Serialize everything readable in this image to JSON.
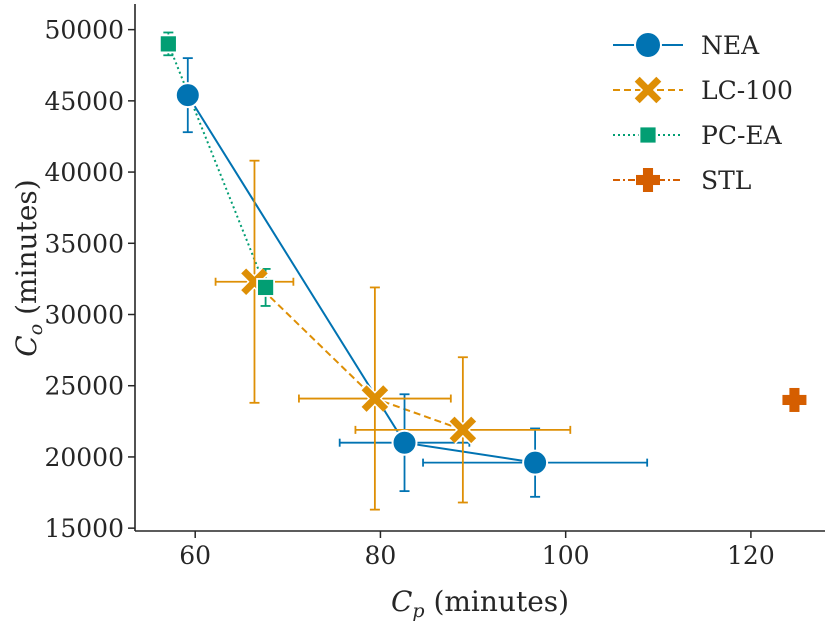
{
  "chart_data": {
    "type": "scatter",
    "xlabel_var": "C",
    "xlabel_sub": "p",
    "xlabel_unit": " (minutes)",
    "ylabel_var": "C",
    "ylabel_sub": "o",
    "ylabel_unit": " (minutes)",
    "xlim": [
      53.5,
      128
    ],
    "ylim": [
      14800,
      51800
    ],
    "xticks": [
      60,
      80,
      100,
      120
    ],
    "yticks": [
      15000,
      20000,
      25000,
      30000,
      35000,
      40000,
      45000,
      50000
    ],
    "grid": false,
    "legend_position": "top-right",
    "series": [
      {
        "name": "NEA",
        "color": "#0173b2",
        "marker": "circle",
        "line": "solid",
        "points": [
          {
            "x": 59.2,
            "y": 45400,
            "xerr": 0,
            "yerr": 2600
          },
          {
            "x": 82.6,
            "y": 21000,
            "xerr": 7.0,
            "yerr": 3400
          },
          {
            "x": 96.7,
            "y": 19600,
            "xerr": 12.1,
            "yerr": 2400
          }
        ]
      },
      {
        "name": "LC-100",
        "color": "#de8f05",
        "marker": "x",
        "line": "dashed",
        "points": [
          {
            "x": 66.4,
            "y": 32300,
            "xerr": 4.2,
            "yerr": 8500
          },
          {
            "x": 79.4,
            "y": 24100,
            "xerr": 8.2,
            "yerr": 7800
          },
          {
            "x": 88.9,
            "y": 21900,
            "xerr": 11.6,
            "yerr": 5100
          }
        ]
      },
      {
        "name": "PC-EA",
        "color": "#029e73",
        "marker": "square",
        "line": "dotted",
        "points": [
          {
            "x": 57.1,
            "y": 49000,
            "xerr": 0.4,
            "yerr": 800
          },
          {
            "x": 67.6,
            "y": 31900,
            "xerr": 0.4,
            "yerr": 1300
          }
        ]
      },
      {
        "name": "STL",
        "color": "#d55e00",
        "marker": "plus",
        "line": "dashdot",
        "points": [
          {
            "x": 124.7,
            "y": 24000,
            "xerr": 0,
            "yerr": 0
          }
        ]
      }
    ]
  }
}
